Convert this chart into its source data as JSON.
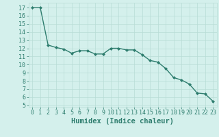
{
  "x": [
    0,
    1,
    2,
    3,
    4,
    5,
    6,
    7,
    8,
    9,
    10,
    11,
    12,
    13,
    14,
    15,
    16,
    17,
    18,
    19,
    20,
    21,
    22,
    23
  ],
  "y": [
    17.0,
    17.0,
    12.4,
    12.1,
    11.9,
    11.4,
    11.7,
    11.7,
    11.3,
    11.3,
    12.0,
    12.0,
    11.8,
    11.8,
    11.2,
    10.5,
    10.3,
    9.5,
    8.4,
    8.1,
    7.6,
    6.5,
    6.4,
    5.5
  ],
  "line_color": "#2e7d6e",
  "marker": "D",
  "marker_size": 2.0,
  "line_width": 1.0,
  "xlabel": "Humidex (Indice chaleur)",
  "xlim": [
    -0.5,
    23.5
  ],
  "ylim": [
    4.8,
    17.6
  ],
  "yticks": [
    5,
    6,
    7,
    8,
    9,
    10,
    11,
    12,
    13,
    14,
    15,
    16,
    17
  ],
  "xticks": [
    0,
    1,
    2,
    3,
    4,
    5,
    6,
    7,
    8,
    9,
    10,
    11,
    12,
    13,
    14,
    15,
    16,
    17,
    18,
    19,
    20,
    21,
    22,
    23
  ],
  "bg_color": "#d4f0ec",
  "grid_color": "#b8dcd6",
  "tick_color": "#2e7d6e",
  "label_color": "#2e7d6e",
  "xlabel_fontsize": 7.5,
  "tick_fontsize": 6.0
}
